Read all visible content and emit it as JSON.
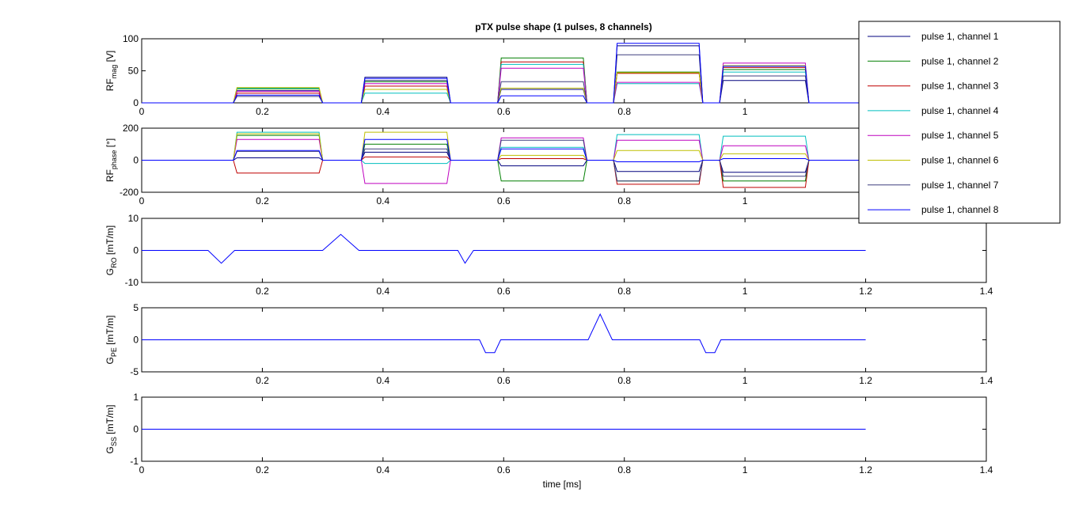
{
  "chart_data": {
    "type": "line",
    "title": "pTX pulse shape (1 pulses, 8 channels)",
    "xlabel": "time [ms]",
    "legend_position": "top-right",
    "colors": {
      "pulse 1, channel 1": "#00007f",
      "pulse 1, channel 2": "#007f00",
      "pulse 1, channel 3": "#bf0000",
      "pulse 1, channel 4": "#00bfbf",
      "pulse 1, channel 5": "#bf00bf",
      "pulse 1, channel 6": "#bfbf00",
      "pulse 1, channel 7": "#3f3f7f",
      "pulse 1, channel 8": "#0000ff",
      "gradient": "#0000ff"
    },
    "legend": [
      "pulse 1, channel 1",
      "pulse 1, channel 2",
      "pulse 1, channel 3",
      "pulse 1, channel 4",
      "pulse 1, channel 5",
      "pulse 1, channel 6",
      "pulse 1, channel 7",
      "pulse 1, channel 8"
    ],
    "segments": [
      {
        "start": 0.152,
        "end": 0.3,
        "ramp": 0.006
      },
      {
        "start": 0.364,
        "end": 0.512,
        "ramp": 0.006
      },
      {
        "start": 0.59,
        "end": 0.738,
        "ramp": 0.006
      },
      {
        "start": 0.782,
        "end": 0.93,
        "ramp": 0.006
      },
      {
        "start": 0.958,
        "end": 1.106,
        "ramp": 0.006
      }
    ],
    "panels": [
      {
        "id": "rf-mag",
        "ylabel_main": "RF",
        "ylabel_sub": "mag",
        "ylabel_unit": " [V]",
        "ylim": [
          0,
          100
        ],
        "yticks": [
          0,
          50,
          100
        ],
        "xlim": [
          0,
          1.4
        ],
        "xticks": [
          0,
          0.2,
          0.4,
          0.6,
          0.8,
          1
        ],
        "series": [
          {
            "name": "pulse 1, channel 1",
            "values": [
              19,
              40,
              21,
              89,
              35
            ]
          },
          {
            "name": "pulse 1, channel 2",
            "values": [
              22,
              33,
              70,
              48,
              52
            ]
          },
          {
            "name": "pulse 1, channel 3",
            "values": [
              15,
              26,
              64,
              46,
              55
            ]
          },
          {
            "name": "pulse 1, channel 4",
            "values": [
              23,
              15,
              60,
              30,
              48
            ]
          },
          {
            "name": "pulse 1, channel 5",
            "values": [
              18,
              30,
              54,
              32,
              62
            ]
          },
          {
            "name": "pulse 1, channel 6",
            "values": [
              24,
              21,
              23,
              47,
              58
            ]
          },
          {
            "name": "pulse 1, channel 7",
            "values": [
              10,
              35,
              33,
              75,
              42
            ]
          },
          {
            "name": "pulse 1, channel 8",
            "values": [
              12,
              38,
              11,
              93,
              57
            ]
          }
        ]
      },
      {
        "id": "rf-phase",
        "ylabel_main": "RF",
        "ylabel_sub": "phase",
        "ylabel_unit": " [°]",
        "ylim": [
          -200,
          200
        ],
        "yticks": [
          -200,
          0,
          200
        ],
        "xlim": [
          0,
          1.4
        ],
        "xticks": [
          0,
          0.2,
          0.4,
          0.6,
          0.8,
          1
        ],
        "series": [
          {
            "name": "pulse 1, channel 1",
            "values": [
              15,
              50,
              -35,
              -70,
              -75
            ]
          },
          {
            "name": "pulse 1, channel 2",
            "values": [
              155,
              100,
              -130,
              -130,
              -130
            ]
          },
          {
            "name": "pulse 1, channel 3",
            "values": [
              -80,
              20,
              10,
              -150,
              -170
            ]
          },
          {
            "name": "pulse 1, channel 4",
            "values": [
              175,
              -20,
              80,
              160,
              150
            ]
          },
          {
            "name": "pulse 1, channel 5",
            "values": [
              130,
              -145,
              140,
              125,
              90
            ]
          },
          {
            "name": "pulse 1, channel 6",
            "values": [
              165,
              175,
              30,
              60,
              40
            ]
          },
          {
            "name": "pulse 1, channel 7",
            "values": [
              55,
              70,
              125,
              -130,
              -100
            ]
          },
          {
            "name": "pulse 1, channel 8",
            "values": [
              60,
              130,
              70,
              -10,
              10
            ]
          }
        ]
      },
      {
        "id": "g-ro",
        "ylabel_main": "G",
        "ylabel_sub": "RO",
        "ylabel_unit": " [mT/m]",
        "ylim": [
          -10,
          10
        ],
        "yticks": [
          -10,
          0,
          10
        ],
        "xlim": [
          0,
          1.4
        ],
        "xticks": [
          0.2,
          0.4,
          0.6,
          0.8,
          1,
          1.2,
          1.4
        ],
        "series": [
          {
            "name": "gradient",
            "x": [
              0,
              0.11,
              0.132,
              0.154,
              0.3,
              0.33,
              0.36,
              0.524,
              0.536,
              0.55,
              1.2
            ],
            "y": [
              0,
              0,
              -4,
              0,
              0,
              5,
              0,
              0,
              -4,
              0,
              0
            ]
          }
        ]
      },
      {
        "id": "g-pe",
        "ylabel_main": "G",
        "ylabel_sub": "PE",
        "ylabel_unit": " [mT/m]",
        "ylim": [
          -5,
          5
        ],
        "yticks": [
          -5,
          0,
          5
        ],
        "xlim": [
          0,
          1.4
        ],
        "xticks": [
          0.2,
          0.4,
          0.6,
          0.8,
          1,
          1.2,
          1.4
        ],
        "series": [
          {
            "name": "gradient",
            "x": [
              0,
              0.56,
              0.57,
              0.585,
              0.595,
              0.74,
              0.76,
              0.78,
              0.925,
              0.935,
              0.95,
              0.96,
              1.2
            ],
            "y": [
              0,
              0,
              -2,
              -2,
              0,
              0,
              4,
              0,
              0,
              -2,
              -2,
              0,
              0
            ]
          }
        ]
      },
      {
        "id": "g-ss",
        "ylabel_main": "G",
        "ylabel_sub": "SS",
        "ylabel_unit": " [mT/m]",
        "ylim": [
          -1,
          1
        ],
        "yticks": [
          -1,
          0,
          1
        ],
        "xlim": [
          0,
          1.4
        ],
        "xticks": [
          0,
          0.2,
          0.4,
          0.6,
          0.8,
          1,
          1.2,
          1.4
        ],
        "series": [
          {
            "name": "gradient",
            "x": [
              0,
              1.2
            ],
            "y": [
              0,
              0
            ]
          }
        ]
      }
    ]
  }
}
